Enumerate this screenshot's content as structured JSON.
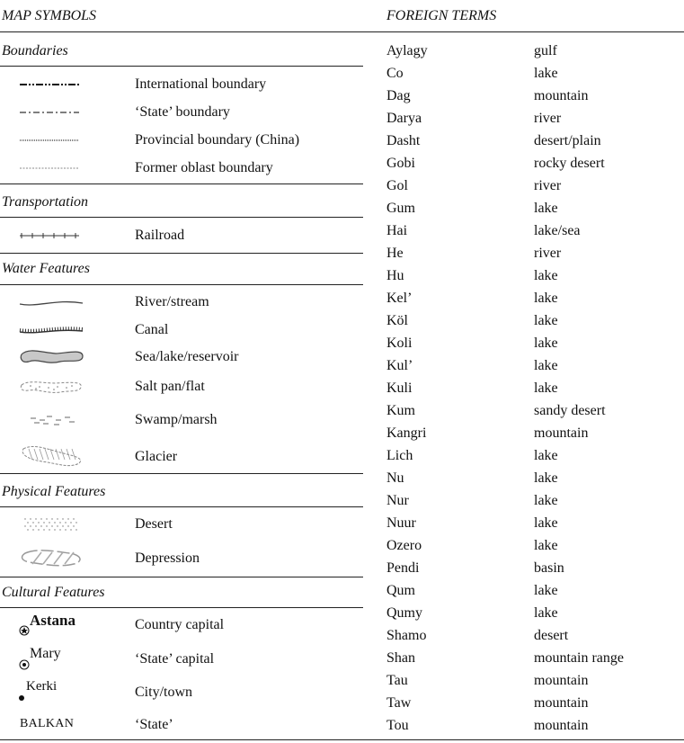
{
  "map_symbols": {
    "title": "MAP SYMBOLS",
    "sections": [
      {
        "heading": "Boundaries",
        "items": [
          {
            "label": "International boundary",
            "icon": "international-boundary-line"
          },
          {
            "label": "‘State’ boundary",
            "icon": "state-boundary-line"
          },
          {
            "label": "Provincial boundary (China)",
            "icon": "provincial-boundary-line"
          },
          {
            "label": "Former oblast boundary",
            "icon": "oblast-boundary-line"
          }
        ]
      },
      {
        "heading": "Transportation",
        "items": [
          {
            "label": "Railroad",
            "icon": "railroad-line"
          }
        ]
      },
      {
        "heading": "Water Features",
        "items": [
          {
            "label": "River/stream",
            "icon": "river-line"
          },
          {
            "label": "Canal",
            "icon": "canal-line"
          },
          {
            "label": "Sea/lake/reservoir",
            "icon": "lake-shape"
          },
          {
            "label": "Salt pan/flat",
            "icon": "salt-pan-shape"
          },
          {
            "label": "Swamp/marsh",
            "icon": "swamp-shape"
          },
          {
            "label": "Glacier",
            "icon": "glacier-shape"
          }
        ]
      },
      {
        "heading": "Physical Features",
        "items": [
          {
            "label": "Desert",
            "icon": "desert-shape"
          },
          {
            "label": "Depression",
            "icon": "depression-shape"
          }
        ]
      },
      {
        "heading": "Cultural Features",
        "items": [
          {
            "label": "Country capital",
            "sample": "Astana",
            "icon": "star-in-circle"
          },
          {
            "label": "‘State’ capital",
            "sample": "Mary",
            "icon": "dot-in-circle"
          },
          {
            "label": "City/town",
            "sample": "Kerki",
            "icon": "dot"
          },
          {
            "label": "‘State’",
            "sample": "BALKAN"
          }
        ]
      }
    ]
  },
  "foreign_terms": {
    "title": "FOREIGN TERMS",
    "terms": [
      [
        "Aylagy",
        "gulf"
      ],
      [
        "Co",
        "lake"
      ],
      [
        "Dag",
        "mountain"
      ],
      [
        "Darya",
        "river"
      ],
      [
        "Dasht",
        "desert/plain"
      ],
      [
        "Gobi",
        "rocky desert"
      ],
      [
        "Gol",
        "river"
      ],
      [
        "Gum",
        "lake"
      ],
      [
        "Hai",
        "lake/sea"
      ],
      [
        "He",
        "river"
      ],
      [
        "Hu",
        "lake"
      ],
      [
        "Kel’",
        "lake"
      ],
      [
        "Köl",
        "lake"
      ],
      [
        "Koli",
        "lake"
      ],
      [
        "Kul’",
        "lake"
      ],
      [
        "Kuli",
        "lake"
      ],
      [
        "Kum",
        "sandy desert"
      ],
      [
        "Kangri",
        "mountain"
      ],
      [
        "Lich",
        "lake"
      ],
      [
        "Nu",
        "lake"
      ],
      [
        "Nur",
        "lake"
      ],
      [
        "Nuur",
        "lake"
      ],
      [
        "Ozero",
        "lake"
      ],
      [
        "Pendi",
        "basin"
      ],
      [
        "Qum",
        "lake"
      ],
      [
        "Qumy",
        "lake"
      ],
      [
        "Shamo",
        "desert"
      ],
      [
        "Shan",
        "mountain range"
      ],
      [
        "Tau",
        "mountain"
      ],
      [
        "Taw",
        "mountain"
      ],
      [
        "Tou",
        "mountain"
      ]
    ]
  }
}
